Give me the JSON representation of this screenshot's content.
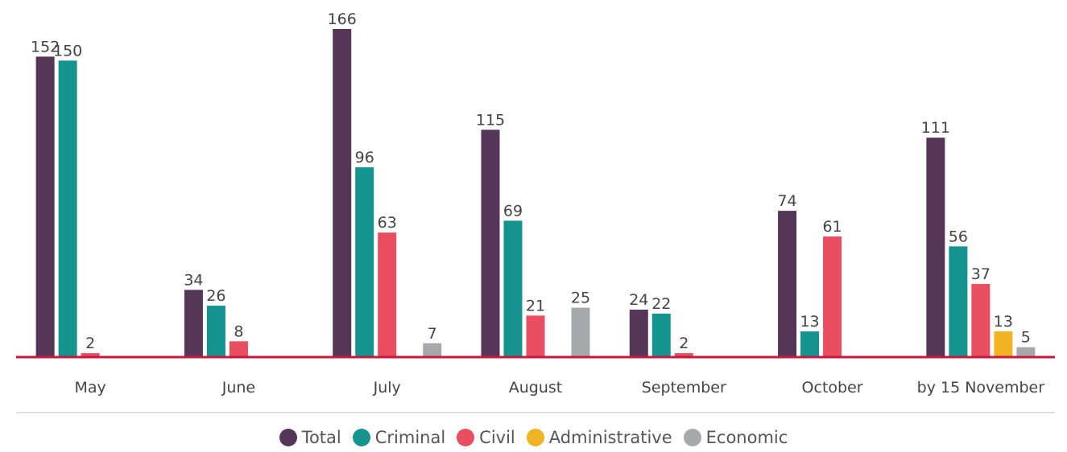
{
  "chart_data": {
    "type": "bar",
    "categories": [
      "May",
      "June",
      "July",
      "August",
      "September",
      "October",
      "by 15 November"
    ],
    "series": [
      {
        "name": "Total",
        "color": "#553558",
        "values": [
          152,
          34,
          166,
          115,
          24,
          74,
          111
        ]
      },
      {
        "name": "Criminal",
        "color": "#14938f",
        "values": [
          150,
          26,
          96,
          69,
          22,
          13,
          56
        ]
      },
      {
        "name": "Civil",
        "color": "#e84e60",
        "values": [
          2,
          8,
          63,
          21,
          2,
          61,
          37
        ]
      },
      {
        "name": "Administrative",
        "color": "#f0b323",
        "values": [
          null,
          null,
          null,
          null,
          null,
          null,
          13
        ]
      },
      {
        "name": "Economic",
        "color": "#a7a8ab",
        "values": [
          null,
          null,
          7,
          25,
          null,
          null,
          5
        ]
      }
    ]
  }
}
